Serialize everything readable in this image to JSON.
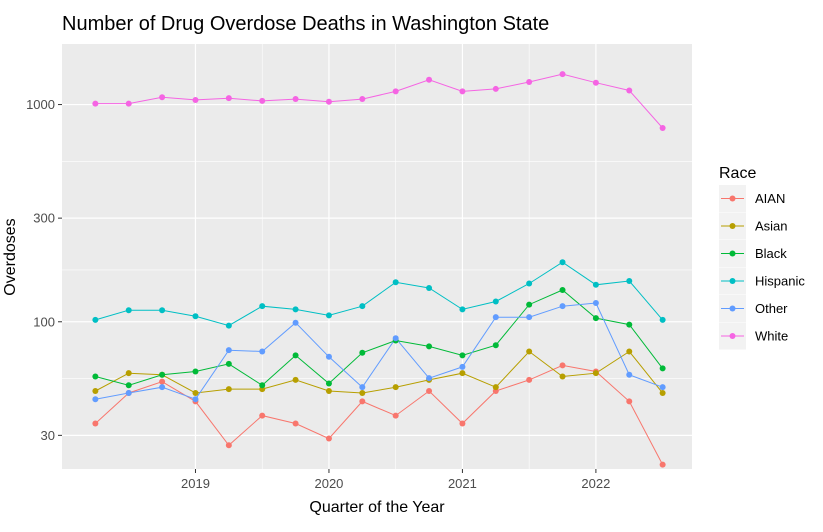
{
  "chart_data": {
    "type": "line",
    "title": "Number of Drug Overdose Deaths in Washington State",
    "xlabel": "Quarter of the Year",
    "ylabel": "Overdoses",
    "y_scale": "log10",
    "ylim": [
      21,
      1900
    ],
    "xlim": [
      2018.0,
      2022.72
    ],
    "x": [
      2018.25,
      2018.5,
      2018.75,
      2019.0,
      2019.25,
      2019.5,
      2019.75,
      2020.0,
      2020.25,
      2020.5,
      2020.75,
      2021.0,
      2021.25,
      2021.5,
      2021.75,
      2022.0,
      2022.25,
      2022.5
    ],
    "x_ticks": [
      2019,
      2020,
      2021,
      2022
    ],
    "x_tick_labels": [
      "2019",
      "2020",
      "2021",
      "2022"
    ],
    "y_ticks": [
      30,
      100,
      300,
      1000
    ],
    "y_tick_labels": [
      "30",
      "100",
      "300",
      "1000"
    ],
    "grid": true,
    "legend_title": "Race",
    "legend_position": "right",
    "series": [
      {
        "name": "AIAN",
        "color": "#F8766D",
        "values": [
          34,
          47,
          53,
          43,
          27,
          37,
          34,
          29,
          43,
          37,
          48,
          34,
          48,
          54,
          63,
          59,
          43,
          22
        ]
      },
      {
        "name": "Asian",
        "color": "#B79F00",
        "values": [
          48,
          58,
          57,
          47,
          49,
          49,
          54,
          48,
          47,
          50,
          54,
          58,
          50,
          73,
          56,
          58,
          73,
          47
        ]
      },
      {
        "name": "Black",
        "color": "#00BA38",
        "values": [
          56,
          51,
          57,
          59,
          64,
          51,
          70,
          52,
          72,
          82,
          77,
          70,
          78,
          120,
          140,
          104,
          97,
          61
        ]
      },
      {
        "name": "Hispanic",
        "color": "#00BFC4",
        "values": [
          102,
          113,
          113,
          106,
          96,
          118,
          114,
          107,
          118,
          152,
          143,
          114,
          124,
          150,
          188,
          148,
          154,
          102
        ]
      },
      {
        "name": "Other",
        "color": "#619CFF",
        "values": [
          44,
          47,
          50,
          44,
          74,
          73,
          99,
          69,
          50,
          84,
          55,
          62,
          105,
          105,
          118,
          122,
          57,
          50
        ]
      },
      {
        "name": "White",
        "color": "#F564E3",
        "values": [
          1010,
          1010,
          1080,
          1050,
          1070,
          1040,
          1060,
          1030,
          1060,
          1150,
          1300,
          1150,
          1180,
          1270,
          1380,
          1260,
          1160,
          780
        ]
      }
    ]
  }
}
